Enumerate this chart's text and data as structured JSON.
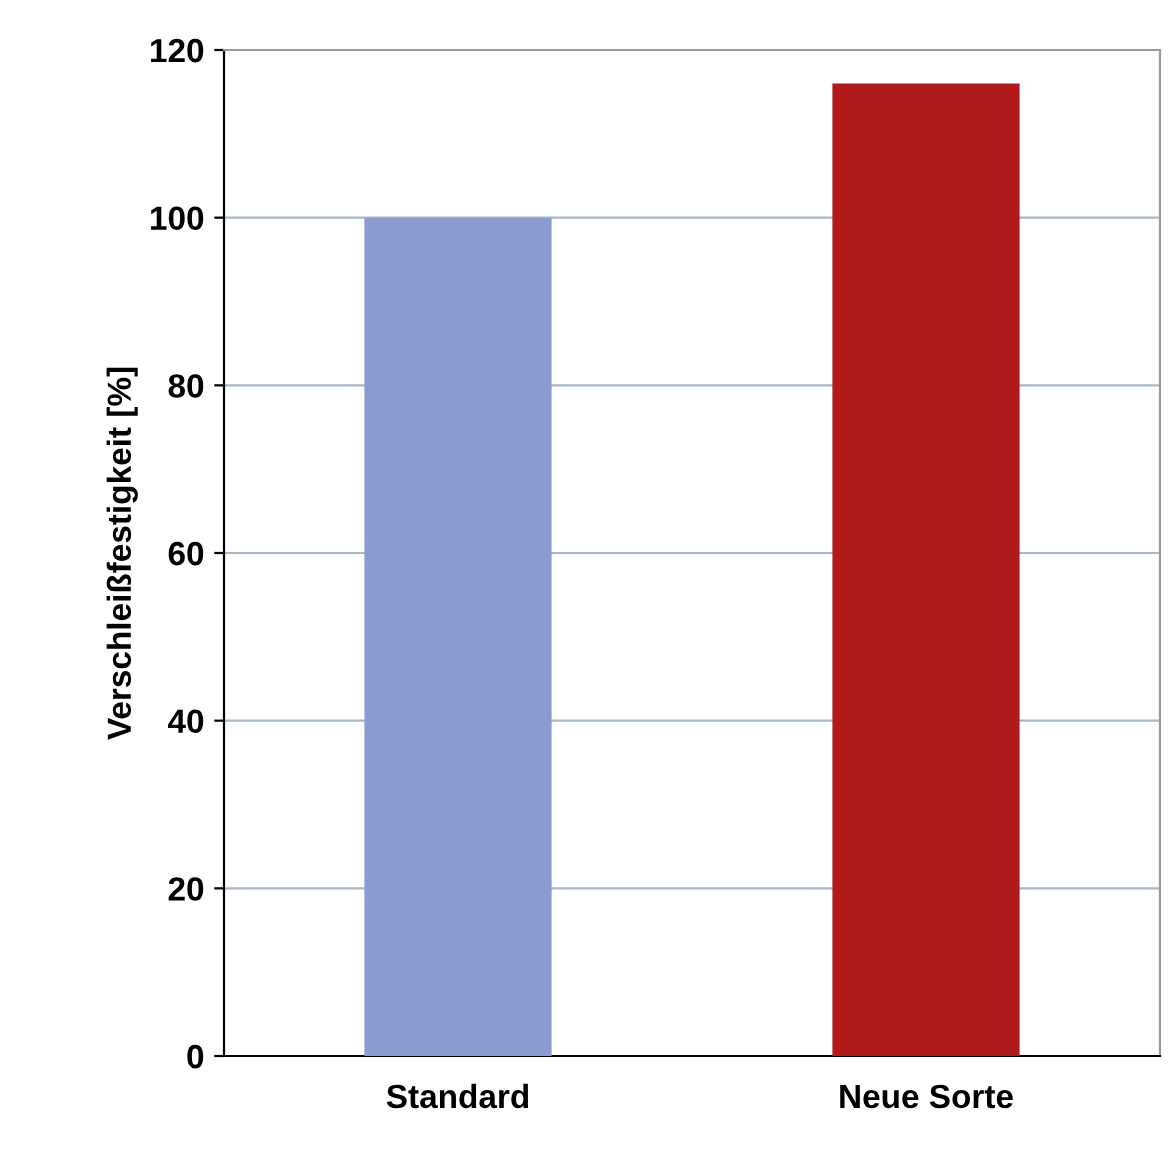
{
  "chart_data": {
    "type": "bar",
    "ylabel": "Verschleißfestigkeit [%]",
    "categories": [
      "Standard",
      "Neue Sorte"
    ],
    "values": [
      100,
      116
    ],
    "colors": [
      "#8a9bcf",
      "#b01a1a"
    ],
    "ylim": [
      0,
      120
    ],
    "yticks": [
      0,
      20,
      40,
      60,
      80,
      100,
      120
    ],
    "grid": "y"
  }
}
